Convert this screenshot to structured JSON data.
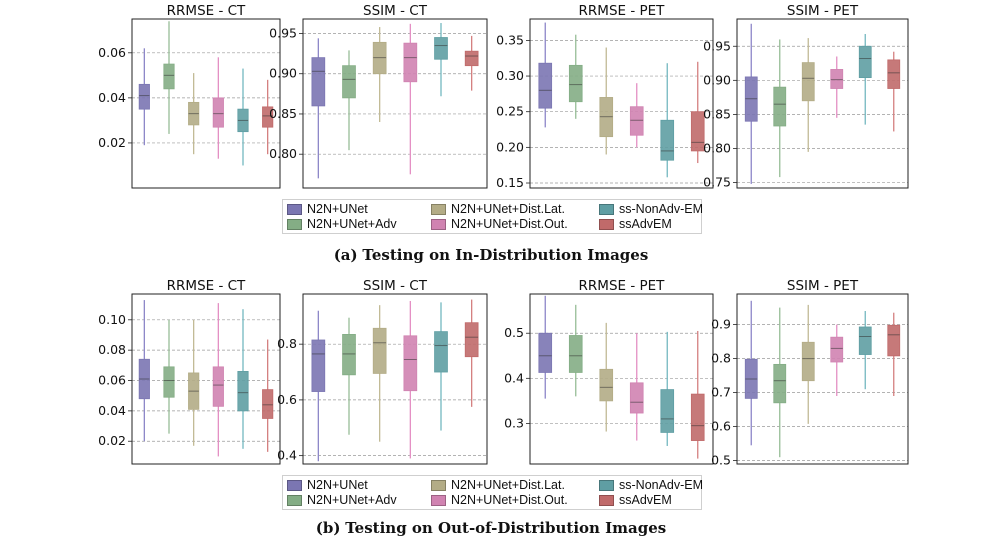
{
  "legend": {
    "items": [
      {
        "label": "N2N+UNet",
        "color": "#7b76b2"
      },
      {
        "label": "N2N+UNet+Dist.Lat.",
        "color": "#b3ac86"
      },
      {
        "label": "ss-NonAdv-EM",
        "color": "#5f9ea3"
      },
      {
        "label": "N2N+UNet+Adv",
        "color": "#84ad85"
      },
      {
        "label": "N2N+UNet+Dist.Out.",
        "color": "#d083b1"
      },
      {
        "label": "ssAdvEM",
        "color": "#c06a6a"
      }
    ]
  },
  "series_colors": {
    "N2N+UNet": {
      "fill": "#7b76b2",
      "whisker": "#8c86c8"
    },
    "N2N+UNet+Adv": {
      "fill": "#84ad85",
      "whisker": "#97bd97"
    },
    "N2N+UNet+Dist.Lat.": {
      "fill": "#b3ac86",
      "whisker": "#c1ba95"
    },
    "N2N+UNet+Dist.Out.": {
      "fill": "#d083b1",
      "whisker": "#e48fc3"
    },
    "ss-NonAdv-EM": {
      "fill": "#5f9ea3",
      "whisker": "#74b8c0"
    },
    "ssAdvEM": {
      "fill": "#c06a6a",
      "whisker": "#d47f7f"
    }
  },
  "captions": {
    "a": {
      "label": "(a)",
      "text": "Testing on In-Distribution Images"
    },
    "b": {
      "label": "(b)",
      "text": "Testing on Out-of-Distribution Images"
    }
  },
  "chart_data": [
    {
      "type": "box",
      "group": "a",
      "title": "RRMSE - CT",
      "ylim": [
        0.0,
        0.075
      ],
      "yticks": [
        0.02,
        0.04,
        0.06
      ],
      "ytick_labels": [
        "0.02",
        "0.04",
        "0.06"
      ],
      "grid": true,
      "series": [
        {
          "name": "N2N+UNet",
          "whislo": 0.019,
          "q1": 0.035,
          "med": 0.041,
          "q3": 0.046,
          "whishi": 0.062
        },
        {
          "name": "N2N+UNet+Adv",
          "whislo": 0.024,
          "q1": 0.044,
          "med": 0.05,
          "q3": 0.055,
          "whishi": 0.074
        },
        {
          "name": "N2N+UNet+Dist.Lat.",
          "whislo": 0.015,
          "q1": 0.028,
          "med": 0.033,
          "q3": 0.038,
          "whishi": 0.051
        },
        {
          "name": "N2N+UNet+Dist.Out.",
          "whislo": 0.013,
          "q1": 0.027,
          "med": 0.033,
          "q3": 0.04,
          "whishi": 0.058
        },
        {
          "name": "ss-NonAdv-EM",
          "whislo": 0.01,
          "q1": 0.025,
          "med": 0.03,
          "q3": 0.035,
          "whishi": 0.053
        },
        {
          "name": "ssAdvEM",
          "whislo": 0.015,
          "q1": 0.027,
          "med": 0.032,
          "q3": 0.036,
          "whishi": 0.048
        }
      ]
    },
    {
      "type": "box",
      "group": "a",
      "title": "SSIM - CT",
      "ylim": [
        0.758,
        0.968
      ],
      "yticks": [
        0.8,
        0.85,
        0.9,
        0.95
      ],
      "ytick_labels": [
        "0.80",
        "0.85",
        "0.90",
        "0.95"
      ],
      "grid": true,
      "series": [
        {
          "name": "N2N+UNet",
          "whislo": 0.77,
          "q1": 0.86,
          "med": 0.903,
          "q3": 0.92,
          "whishi": 0.944
        },
        {
          "name": "N2N+UNet+Adv",
          "whislo": 0.805,
          "q1": 0.87,
          "med": 0.893,
          "q3": 0.91,
          "whishi": 0.929
        },
        {
          "name": "N2N+UNet+Dist.Lat.",
          "whislo": 0.84,
          "q1": 0.9,
          "med": 0.92,
          "q3": 0.939,
          "whishi": 0.958
        },
        {
          "name": "N2N+UNet+Dist.Out.",
          "whislo": 0.775,
          "q1": 0.89,
          "med": 0.92,
          "q3": 0.938,
          "whishi": 0.962
        },
        {
          "name": "ss-NonAdv-EM",
          "whislo": 0.872,
          "q1": 0.918,
          "med": 0.935,
          "q3": 0.945,
          "whishi": 0.963
        },
        {
          "name": "ssAdvEM",
          "whislo": 0.879,
          "q1": 0.91,
          "med": 0.922,
          "q3": 0.928,
          "whishi": 0.947
        }
      ]
    },
    {
      "type": "box",
      "group": "a",
      "title": "RRMSE - PET",
      "ylim": [
        0.143,
        0.38
      ],
      "yticks": [
        0.15,
        0.2,
        0.25,
        0.3,
        0.35
      ],
      "ytick_labels": [
        "0.15",
        "0.20",
        "0.25",
        "0.30",
        "0.35"
      ],
      "grid": true,
      "series": [
        {
          "name": "N2N+UNet",
          "whislo": 0.228,
          "q1": 0.255,
          "med": 0.28,
          "q3": 0.318,
          "whishi": 0.375
        },
        {
          "name": "N2N+UNet+Adv",
          "whislo": 0.24,
          "q1": 0.264,
          "med": 0.288,
          "q3": 0.315,
          "whishi": 0.358
        },
        {
          "name": "N2N+UNet+Dist.Lat.",
          "whislo": 0.19,
          "q1": 0.215,
          "med": 0.243,
          "q3": 0.27,
          "whishi": 0.34
        },
        {
          "name": "N2N+UNet+Dist.Out.",
          "whislo": 0.2,
          "q1": 0.217,
          "med": 0.238,
          "q3": 0.257,
          "whishi": 0.29
        },
        {
          "name": "ss-NonAdv-EM",
          "whislo": 0.158,
          "q1": 0.182,
          "med": 0.195,
          "q3": 0.238,
          "whishi": 0.318
        },
        {
          "name": "ssAdvEM",
          "whislo": 0.178,
          "q1": 0.195,
          "med": 0.207,
          "q3": 0.25,
          "whishi": 0.32
        }
      ]
    },
    {
      "type": "box",
      "group": "a",
      "title": "SSIM - PET",
      "ylim": [
        0.742,
        0.99
      ],
      "yticks": [
        0.75,
        0.8,
        0.85,
        0.9,
        0.95
      ],
      "ytick_labels": [
        "0.75",
        "0.80",
        "0.85",
        "0.90",
        "0.95"
      ],
      "grid": true,
      "series": [
        {
          "name": "N2N+UNet",
          "whislo": 0.748,
          "q1": 0.84,
          "med": 0.873,
          "q3": 0.905,
          "whishi": 0.983
        },
        {
          "name": "N2N+UNet+Adv",
          "whislo": 0.758,
          "q1": 0.833,
          "med": 0.865,
          "q3": 0.89,
          "whishi": 0.96
        },
        {
          "name": "N2N+UNet+Dist.Lat.",
          "whislo": 0.795,
          "q1": 0.87,
          "med": 0.903,
          "q3": 0.926,
          "whishi": 0.962
        },
        {
          "name": "N2N+UNet+Dist.Out.",
          "whislo": 0.845,
          "q1": 0.888,
          "med": 0.901,
          "q3": 0.916,
          "whishi": 0.935
        },
        {
          "name": "ss-NonAdv-EM",
          "whislo": 0.835,
          "q1": 0.904,
          "med": 0.932,
          "q3": 0.95,
          "whishi": 0.968
        },
        {
          "name": "ssAdvEM",
          "whislo": 0.825,
          "q1": 0.888,
          "med": 0.911,
          "q3": 0.93,
          "whishi": 0.942
        }
      ]
    },
    {
      "type": "box",
      "group": "b",
      "title": "RRMSE - CT",
      "ylim": [
        0.005,
        0.117
      ],
      "yticks": [
        0.02,
        0.04,
        0.06,
        0.08,
        0.1
      ],
      "ytick_labels": [
        "0.02",
        "0.04",
        "0.06",
        "0.08",
        "0.10"
      ],
      "grid": true,
      "series": [
        {
          "name": "N2N+UNet",
          "whislo": 0.02,
          "q1": 0.048,
          "med": 0.061,
          "q3": 0.074,
          "whishi": 0.113
        },
        {
          "name": "N2N+UNet+Adv",
          "whislo": 0.025,
          "q1": 0.049,
          "med": 0.06,
          "q3": 0.069,
          "whishi": 0.1
        },
        {
          "name": "N2N+UNet+Dist.Lat.",
          "whislo": 0.017,
          "q1": 0.041,
          "med": 0.053,
          "q3": 0.065,
          "whishi": 0.1
        },
        {
          "name": "N2N+UNet+Dist.Out.",
          "whislo": 0.01,
          "q1": 0.043,
          "med": 0.057,
          "q3": 0.069,
          "whishi": 0.111
        },
        {
          "name": "ss-NonAdv-EM",
          "whislo": 0.015,
          "q1": 0.04,
          "med": 0.052,
          "q3": 0.066,
          "whishi": 0.107
        },
        {
          "name": "ssAdvEM",
          "whislo": 0.013,
          "q1": 0.035,
          "med": 0.044,
          "q3": 0.054,
          "whishi": 0.087
        }
      ]
    },
    {
      "type": "box",
      "group": "b",
      "title": "SSIM - CT",
      "ylim": [
        0.37,
        0.98
      ],
      "yticks": [
        0.4,
        0.6,
        0.8
      ],
      "ytick_labels": [
        "0.4",
        "0.6",
        "0.8"
      ],
      "grid": true,
      "series": [
        {
          "name": "N2N+UNet",
          "whislo": 0.38,
          "q1": 0.63,
          "med": 0.765,
          "q3": 0.815,
          "whishi": 0.92
        },
        {
          "name": "N2N+UNet+Adv",
          "whislo": 0.475,
          "q1": 0.69,
          "med": 0.765,
          "q3": 0.835,
          "whishi": 0.895
        },
        {
          "name": "N2N+UNet+Dist.Lat.",
          "whislo": 0.45,
          "q1": 0.695,
          "med": 0.805,
          "q3": 0.857,
          "whishi": 0.94
        },
        {
          "name": "N2N+UNet+Dist.Out.",
          "whislo": 0.39,
          "q1": 0.633,
          "med": 0.745,
          "q3": 0.83,
          "whishi": 0.955
        },
        {
          "name": "ss-NonAdv-EM",
          "whislo": 0.49,
          "q1": 0.7,
          "med": 0.795,
          "q3": 0.845,
          "whishi": 0.95
        },
        {
          "name": "ssAdvEM",
          "whislo": 0.575,
          "q1": 0.755,
          "med": 0.825,
          "q3": 0.877,
          "whishi": 0.96
        }
      ]
    },
    {
      "type": "box",
      "group": "b",
      "title": "RRMSE - PET",
      "ylim": [
        0.21,
        0.587
      ],
      "yticks": [
        0.3,
        0.4,
        0.5
      ],
      "ytick_labels": [
        "0.3",
        "0.4",
        "0.5"
      ],
      "grid": true,
      "series": [
        {
          "name": "N2N+UNet",
          "whislo": 0.355,
          "q1": 0.413,
          "med": 0.45,
          "q3": 0.5,
          "whishi": 0.583
        },
        {
          "name": "N2N+UNet+Adv",
          "whislo": 0.36,
          "q1": 0.413,
          "med": 0.45,
          "q3": 0.495,
          "whishi": 0.563
        },
        {
          "name": "N2N+UNet+Dist.Lat.",
          "whislo": 0.282,
          "q1": 0.35,
          "med": 0.38,
          "q3": 0.42,
          "whishi": 0.523
        },
        {
          "name": "N2N+UNet+Dist.Out.",
          "whislo": 0.262,
          "q1": 0.323,
          "med": 0.347,
          "q3": 0.39,
          "whishi": 0.5
        },
        {
          "name": "ss-NonAdv-EM",
          "whislo": 0.25,
          "q1": 0.28,
          "med": 0.31,
          "q3": 0.375,
          "whishi": 0.503
        },
        {
          "name": "ssAdvEM",
          "whislo": 0.222,
          "q1": 0.262,
          "med": 0.295,
          "q3": 0.365,
          "whishi": 0.505
        }
      ]
    },
    {
      "type": "box",
      "group": "b",
      "title": "SSIM - PET",
      "ylim": [
        0.49,
        0.99
      ],
      "yticks": [
        0.5,
        0.6,
        0.7,
        0.8,
        0.9
      ],
      "ytick_labels": [
        "0.5",
        "0.6",
        "0.7",
        "0.8",
        "0.9"
      ],
      "grid": true,
      "series": [
        {
          "name": "N2N+UNet",
          "whislo": 0.545,
          "q1": 0.683,
          "med": 0.74,
          "q3": 0.798,
          "whishi": 0.97
        },
        {
          "name": "N2N+UNet+Adv",
          "whislo": 0.51,
          "q1": 0.67,
          "med": 0.735,
          "q3": 0.783,
          "whishi": 0.95
        },
        {
          "name": "N2N+UNet+Dist.Lat.",
          "whislo": 0.608,
          "q1": 0.735,
          "med": 0.8,
          "q3": 0.848,
          "whishi": 0.958
        },
        {
          "name": "N2N+UNet+Dist.Out.",
          "whislo": 0.69,
          "q1": 0.79,
          "med": 0.83,
          "q3": 0.863,
          "whishi": 0.9
        },
        {
          "name": "ss-NonAdv-EM",
          "whislo": 0.71,
          "q1": 0.812,
          "med": 0.865,
          "q3": 0.893,
          "whishi": 0.94
        },
        {
          "name": "ssAdvEM",
          "whislo": 0.69,
          "q1": 0.808,
          "med": 0.87,
          "q3": 0.898,
          "whishi": 0.935
        }
      ]
    }
  ]
}
